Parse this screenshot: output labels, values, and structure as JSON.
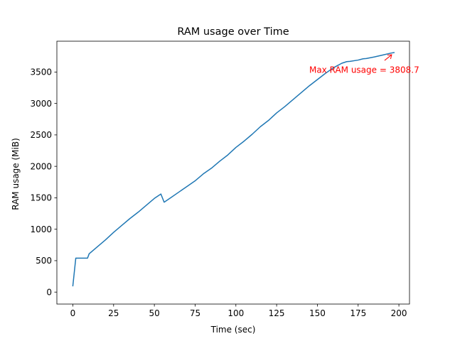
{
  "chart_data": {
    "type": "line",
    "title": "RAM usage over Time",
    "xlabel": "Time (sec)",
    "ylabel": "RAM usage (MiB)",
    "xlim": [
      -9.8,
      206.5
    ],
    "ylim": [
      -190,
      3990
    ],
    "xticks": [
      0,
      25,
      50,
      75,
      100,
      125,
      150,
      175,
      200
    ],
    "yticks": [
      0,
      500,
      1000,
      1500,
      2000,
      2500,
      3000,
      3500
    ],
    "grid": false,
    "series": [
      {
        "color": "#1f77b4",
        "x": [
          0,
          1.8,
          9,
          10,
          15,
          20,
          25,
          30,
          35,
          40,
          45,
          50,
          54,
          56,
          60,
          65,
          70,
          75,
          80,
          85,
          90,
          95,
          100,
          105,
          110,
          115,
          120,
          125,
          130,
          135,
          140,
          145,
          150,
          155,
          160,
          165,
          168,
          170,
          175,
          178,
          180,
          185,
          190,
          195,
          197
        ],
        "y": [
          100,
          540,
          540,
          610,
          720,
          830,
          950,
          1060,
          1170,
          1270,
          1380,
          1490,
          1560,
          1430,
          1500,
          1590,
          1680,
          1770,
          1880,
          1970,
          2080,
          2180,
          2300,
          2400,
          2510,
          2630,
          2730,
          2850,
          2950,
          3060,
          3170,
          3280,
          3380,
          3480,
          3570,
          3640,
          3665,
          3670,
          3690,
          3710,
          3715,
          3740,
          3770,
          3800,
          3808.7
        ]
      }
    ],
    "annotation": {
      "text": "Max RAM usage = 3808.7",
      "color": "#ff0000",
      "point": [
        196,
        3808.7
      ],
      "text_at": [
        145,
        3490
      ]
    }
  }
}
